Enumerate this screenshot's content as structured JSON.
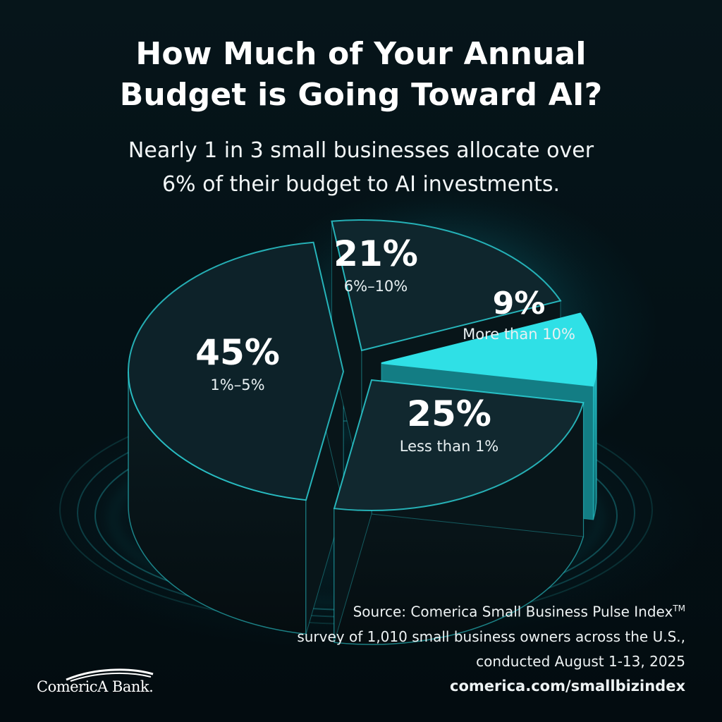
{
  "header": {
    "title_line1": "How Much of Your Annual",
    "title_line2": "Budget is Going Toward AI?",
    "subtitle_line1": "Nearly 1 in 3 small businesses allocate over",
    "subtitle_line2": "6% of their budget to AI investments."
  },
  "chart_data": {
    "type": "pie",
    "title": "How Much of Your Annual Budget is Going Toward AI?",
    "slices": [
      {
        "label": "1%–5%",
        "value": 45,
        "value_label": "45%",
        "color": "#0d2229"
      },
      {
        "label": "6%–10%",
        "value": 21,
        "value_label": "21%",
        "color": "#0f262d"
      },
      {
        "label": "More than 10%",
        "value": 9,
        "value_label": "9%",
        "color": "#2fe0e6"
      },
      {
        "label": "Less than 1%",
        "value": 25,
        "value_label": "25%",
        "color": "#11282f"
      }
    ],
    "accent_color": "#2fe0e6"
  },
  "footer": {
    "source_line1": "Source: Comerica Small Business Pulse Index",
    "source_tm": "TM",
    "source_line2": "survey of 1,010 small business owners across the U.S.,",
    "source_line3": "conducted August 1-13, 2025",
    "url": "comerica.com/smallbizindex",
    "logo_text": "ComericA Bank."
  }
}
